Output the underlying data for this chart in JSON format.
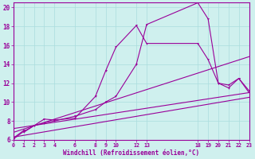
{
  "bg_color": "#cff0ee",
  "grid_color": "#aadddd",
  "line_color": "#990099",
  "xlabel": "Windchill (Refroidissement éolien,°C)",
  "xlim": [
    0,
    23
  ],
  "ylim": [
    6,
    20.5
  ],
  "xticks": [
    0,
    1,
    2,
    3,
    4,
    6,
    8,
    9,
    10,
    12,
    13,
    18,
    19,
    20,
    21,
    22,
    23
  ],
  "yticks": [
    6,
    8,
    10,
    12,
    14,
    16,
    18,
    20
  ],
  "curve1_x": [
    0,
    1,
    1,
    2,
    3,
    4,
    6,
    8,
    9,
    10,
    12,
    13,
    18,
    19,
    20,
    21,
    22,
    23
  ],
  "curve1_y": [
    6.2,
    7.0,
    6.8,
    7.5,
    8.2,
    8.1,
    8.3,
    10.6,
    13.3,
    15.8,
    18.1,
    16.2,
    16.2,
    14.5,
    12.0,
    11.5,
    12.5,
    11.0
  ],
  "curve2_x": [
    0,
    1,
    2,
    3,
    4,
    6,
    8,
    9,
    10,
    12,
    13,
    18,
    19,
    20,
    21,
    22,
    23
  ],
  "curve2_y": [
    6.1,
    6.9,
    7.5,
    7.8,
    8.0,
    8.5,
    9.2,
    10.0,
    10.6,
    14.0,
    18.2,
    20.5,
    18.8,
    12.0,
    11.8,
    12.5,
    11.2
  ],
  "line1_x": [
    0,
    23
  ],
  "line1_y": [
    6.3,
    10.5
  ],
  "line2_x": [
    0,
    23
  ],
  "line2_y": [
    6.8,
    14.8
  ],
  "line3_x": [
    0,
    23
  ],
  "line3_y": [
    7.2,
    11.0
  ]
}
